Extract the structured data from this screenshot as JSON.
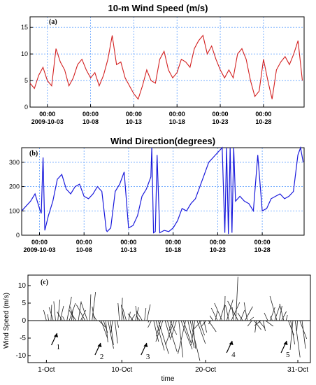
{
  "chart_data": [
    {
      "type": "line",
      "panel_label": "(a)",
      "title": "10-m Wind Speed (m/s)",
      "x_tick_labels": [
        {
          "time": "00:00",
          "date": "2009-10-03",
          "day": 3
        },
        {
          "time": "00:00",
          "date": "10-08",
          "day": 8
        },
        {
          "time": "00:00",
          "date": "10-13",
          "day": 13
        },
        {
          "time": "00:00",
          "date": "10-18",
          "day": 18
        },
        {
          "time": "00:00",
          "date": "10-23",
          "day": 23
        },
        {
          "time": "00:00",
          "date": "10-28",
          "day": 28
        }
      ],
      "xlim": [
        1,
        32.7
      ],
      "yticks": [
        0,
        5,
        10,
        15
      ],
      "ylim": [
        0,
        17
      ],
      "grid": true,
      "line_color": "#d32020",
      "x": [
        1.0,
        1.5,
        2.0,
        2.5,
        3.0,
        3.5,
        4.0,
        4.5,
        5.0,
        5.5,
        6.0,
        6.5,
        7.0,
        7.5,
        8.0,
        8.5,
        9.0,
        9.5,
        10.0,
        10.5,
        11.0,
        11.5,
        12.0,
        12.5,
        13.0,
        13.5,
        14.0,
        14.5,
        15.0,
        15.5,
        16.0,
        16.5,
        17.0,
        17.5,
        18.0,
        18.5,
        19.0,
        19.5,
        20.0,
        20.5,
        21.0,
        21.5,
        22.0,
        22.5,
        23.0,
        23.5,
        24.0,
        24.5,
        25.0,
        25.5,
        26.0,
        26.5,
        27.0,
        27.5,
        28.0,
        28.5,
        29.0,
        29.5,
        30.0,
        30.5,
        31.0,
        31.5,
        32.0,
        32.5
      ],
      "y": [
        4.5,
        3.5,
        6.0,
        7.5,
        5.0,
        4.0,
        11.0,
        8.5,
        7.0,
        4.0,
        5.5,
        8.0,
        9.0,
        7.0,
        5.5,
        6.5,
        4.0,
        6.0,
        9.0,
        13.5,
        8.0,
        8.5,
        5.5,
        4.0,
        2.5,
        1.5,
        4.0,
        7.0,
        5.0,
        4.5,
        9.0,
        10.5,
        7.0,
        5.5,
        6.5,
        9.0,
        8.5,
        7.5,
        11.0,
        12.5,
        13.5,
        10.0,
        11.5,
        9.0,
        7.0,
        5.5,
        7.0,
        5.5,
        10.0,
        11.0,
        9.0,
        5.0,
        2.0,
        3.0,
        9.0,
        5.0,
        1.5,
        7.0,
        8.5,
        9.5,
        8.0,
        10.0,
        12.5,
        5.0
      ]
    },
    {
      "type": "line",
      "panel_label": "(b)",
      "title": "Wind Direction(degrees)",
      "x_tick_labels": [
        {
          "time": "00:00",
          "date": "2009-10-03",
          "day": 3
        },
        {
          "time": "00:00",
          "date": "10-08",
          "day": 8
        },
        {
          "time": "00:00",
          "date": "10-13",
          "day": 13
        },
        {
          "time": "00:00",
          "date": "10-18",
          "day": 18
        },
        {
          "time": "00:00",
          "date": "10-23",
          "day": 23
        },
        {
          "time": "00:00",
          "date": "10-28",
          "day": 28
        }
      ],
      "xlim": [
        1,
        32.7
      ],
      "yticks": [
        0,
        100,
        200,
        300
      ],
      "ylim": [
        0,
        360
      ],
      "grid": true,
      "line_color": "#1a1adc",
      "x": [
        1.0,
        1.5,
        2.0,
        2.5,
        3.0,
        3.2,
        3.4,
        3.6,
        4.0,
        4.5,
        5.0,
        5.5,
        6.0,
        6.5,
        7.0,
        7.5,
        8.0,
        8.5,
        9.0,
        9.5,
        10.0,
        10.5,
        10.6,
        11.0,
        11.5,
        12.0,
        12.5,
        13.0,
        13.5,
        14.0,
        14.5,
        15.0,
        15.5,
        15.6,
        15.8,
        16.0,
        16.2,
        16.5,
        17.0,
        17.5,
        18.0,
        18.5,
        19.0,
        19.5,
        20.0,
        20.5,
        21.0,
        21.5,
        22.0,
        22.5,
        23.0,
        23.5,
        23.8,
        24.0,
        24.2,
        24.4,
        24.6,
        24.8,
        25.0,
        25.5,
        26.0,
        26.5,
        27.0,
        27.5,
        28.0,
        28.5,
        29.0,
        29.5,
        30.0,
        30.5,
        31.0,
        31.5,
        32.0,
        32.3,
        32.6
      ],
      "y": [
        100,
        120,
        140,
        170,
        110,
        90,
        320,
        20,
        80,
        140,
        230,
        250,
        190,
        170,
        200,
        210,
        160,
        150,
        170,
        200,
        180,
        20,
        15,
        30,
        180,
        210,
        260,
        30,
        40,
        80,
        160,
        190,
        240,
        360,
        10,
        15,
        330,
        10,
        20,
        15,
        30,
        60,
        110,
        100,
        130,
        150,
        200,
        250,
        300,
        320,
        340,
        360,
        10,
        360,
        5,
        360,
        10,
        360,
        140,
        160,
        140,
        130,
        100,
        330,
        100,
        110,
        150,
        160,
        170,
        150,
        160,
        180,
        330,
        360,
        300
      ]
    },
    {
      "type": "stick_plot",
      "panel_label": "(c)",
      "ylabel": "Wind Speed (m/s)",
      "xlabel": "time",
      "x_tick_labels": [
        {
          "label": "1-Oct",
          "day": 1
        },
        {
          "label": "10-Oct",
          "day": 10
        },
        {
          "label": "20-Oct",
          "day": 20
        },
        {
          "label": "31-Oct",
          "day": 31
        }
      ],
      "xlim": [
        -1.2,
        32.5
      ],
      "yticks": [
        -10,
        -5,
        0,
        5,
        10
      ],
      "ylim": [
        -12,
        13
      ],
      "grid": false,
      "vectors_uv": [
        [
          -0.8,
          3.0
        ],
        [
          -0.3,
          1.8
        ],
        [
          0.2,
          4.5
        ],
        [
          -1.2,
          3.8
        ],
        [
          -0.5,
          5.5
        ],
        [
          0.6,
          6.0
        ],
        [
          1.0,
          4.2
        ],
        [
          -1.5,
          2.5
        ],
        [
          -0.6,
          1.2
        ],
        [
          1.3,
          6.8
        ],
        [
          1.8,
          5.0
        ],
        [
          0.4,
          3.2
        ],
        [
          -1.0,
          4.0
        ],
        [
          -2.0,
          3.0
        ],
        [
          0.8,
          5.5
        ],
        [
          1.5,
          3.0
        ],
        [
          -0.4,
          0.8
        ],
        [
          -2.5,
          4.5
        ],
        [
          -1.8,
          5.2
        ],
        [
          0.3,
          7.5
        ],
        [
          1.0,
          8.2
        ],
        [
          -0.6,
          4.0
        ],
        [
          -1.2,
          2.0
        ],
        [
          2.0,
          -2.0
        ],
        [
          1.8,
          -5.0
        ],
        [
          1.2,
          -3.5
        ],
        [
          0.6,
          -6.2
        ],
        [
          1.6,
          -8.0
        ],
        [
          0.9,
          -7.0
        ],
        [
          -0.5,
          -3.5
        ],
        [
          0.8,
          -6.5
        ],
        [
          0.4,
          -2.0
        ],
        [
          -0.4,
          5.0
        ],
        [
          0.2,
          6.5
        ],
        [
          -0.8,
          4.5
        ],
        [
          -1.0,
          3.5
        ],
        [
          0.5,
          2.5
        ],
        [
          1.2,
          1.8
        ],
        [
          -1.5,
          2.0
        ],
        [
          0.9,
          3.8
        ],
        [
          -0.6,
          4.2
        ],
        [
          -1.0,
          1.2
        ],
        [
          -1.6,
          2.6
        ],
        [
          0.4,
          3.6
        ],
        [
          1.0,
          4.6
        ],
        [
          -0.3,
          -0.5
        ],
        [
          -1.0,
          -2.0
        ],
        [
          1.4,
          -6.0
        ],
        [
          2.4,
          -8.5
        ],
        [
          3.0,
          -9.5
        ],
        [
          -1.2,
          -4.5
        ],
        [
          -2.0,
          -6.0
        ],
        [
          1.6,
          -5.5
        ],
        [
          2.8,
          -9.0
        ],
        [
          2.0,
          -4.0
        ],
        [
          -0.8,
          -3.0
        ],
        [
          -2.5,
          -7.0
        ],
        [
          -1.6,
          -5.0
        ],
        [
          1.2,
          -10.5
        ],
        [
          3.2,
          -8.2
        ],
        [
          2.2,
          -6.4
        ],
        [
          -2.2,
          -9.5
        ],
        [
          1.8,
          -7.8
        ],
        [
          2.8,
          -11.5
        ],
        [
          0.9,
          -8.0
        ],
        [
          -1.0,
          -7.0
        ],
        [
          2.4,
          -6.6
        ],
        [
          1.5,
          -4.2
        ],
        [
          -2.4,
          -2.6
        ],
        [
          0.8,
          -3.4
        ],
        [
          -1.5,
          -1.8
        ],
        [
          2.2,
          -3.2
        ],
        [
          -0.6,
          -1.0
        ],
        [
          -0.9,
          1.4
        ],
        [
          0.6,
          2.8
        ],
        [
          -1.8,
          3.6
        ],
        [
          1.4,
          4.6
        ],
        [
          -2.2,
          5.0
        ],
        [
          0.2,
          7.0
        ],
        [
          1.8,
          6.0
        ],
        [
          -1.0,
          4.4
        ],
        [
          2.4,
          5.2
        ],
        [
          -0.4,
          3.8
        ],
        [
          0.6,
          12.5
        ],
        [
          -3.0,
          5.6
        ],
        [
          1.2,
          3.0
        ],
        [
          -1.4,
          2.2
        ],
        [
          2.2,
          4.0
        ],
        [
          -0.9,
          5.2
        ],
        [
          1.2,
          1.0
        ],
        [
          -1.2,
          -1.6
        ],
        [
          2.0,
          -2.6
        ],
        [
          -0.4,
          -3.4
        ],
        [
          1.8,
          -2.2
        ],
        [
          -1.8,
          -1.4
        ],
        [
          0.6,
          -3.0
        ],
        [
          2.2,
          -1.6
        ],
        [
          -1.0,
          2.2
        ],
        [
          1.4,
          3.8
        ],
        [
          -0.6,
          1.2
        ],
        [
          1.6,
          4.6
        ],
        [
          -2.0,
          7.0
        ],
        [
          0.8,
          4.2
        ],
        [
          1.4,
          2.6
        ],
        [
          -1.2,
          4.8
        ],
        [
          0.4,
          1.6
        ],
        [
          1.6,
          -4.2
        ],
        [
          1.2,
          -6.8
        ],
        [
          -0.8,
          -8.4
        ],
        [
          1.4,
          -10.5
        ],
        [
          -0.2,
          -3.0
        ],
        [
          2.0,
          -5.2
        ],
        [
          1.0,
          -8.0
        ]
      ],
      "annotations": [
        {
          "label": "1",
          "day": 1.6,
          "y": -7.0
        },
        {
          "label": "2",
          "day": 6.8,
          "y": -9.8
        },
        {
          "label": "3",
          "day": 12.3,
          "y": -9.8
        },
        {
          "label": "4",
          "day": 22.5,
          "y": -9.2
        },
        {
          "label": "5",
          "day": 29.0,
          "y": -9.2
        }
      ]
    }
  ]
}
